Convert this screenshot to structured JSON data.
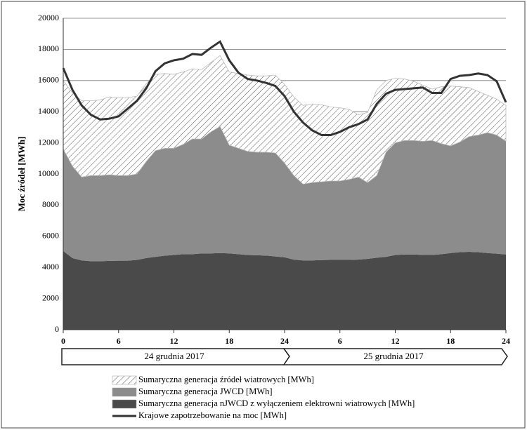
{
  "chart_data": {
    "type": "stacked-area-line",
    "y_label": "Moc źródeł [MWh]",
    "x": [
      0,
      1,
      2,
      3,
      4,
      5,
      6,
      7,
      8,
      9,
      10,
      11,
      12,
      13,
      14,
      15,
      16,
      17,
      18,
      19,
      20,
      21,
      22,
      23,
      24,
      25,
      26,
      27,
      28,
      29,
      30,
      31,
      32,
      33,
      34,
      35,
      36,
      37,
      38,
      39,
      40,
      41,
      42,
      43,
      44,
      45,
      46,
      47,
      48
    ],
    "xlim": [
      0,
      48
    ],
    "xticks": [
      0,
      6,
      12,
      18,
      24,
      {
        "value": 30,
        "label": "6"
      },
      {
        "value": 36,
        "label": "12"
      },
      {
        "value": 42,
        "label": "18"
      },
      {
        "value": 48,
        "label": "24"
      }
    ],
    "ylim": [
      0,
      20000
    ],
    "yticks": [
      0,
      2000,
      4000,
      6000,
      8000,
      10000,
      12000,
      14000,
      16000,
      18000,
      20000
    ],
    "grid": true,
    "date_bands": [
      "24 grudnia 2017",
      "25 grudnia 2017"
    ],
    "series": [
      {
        "name": "Sumaryczna generacja źródeł wiatrowych [MWh]",
        "kind": "area",
        "color": "#555555",
        "pattern": "hatch",
        "values": [
          4400,
          4700,
          4900,
          4800,
          4850,
          5000,
          5000,
          5000,
          5000,
          5000,
          4900,
          4800,
          4750,
          4650,
          4500,
          4450,
          4450,
          4550,
          4700,
          4800,
          4900,
          4900,
          4900,
          5000,
          5050,
          5050,
          5050,
          5050,
          4950,
          4750,
          4700,
          4500,
          4000,
          4500,
          5500,
          4600,
          4150,
          3950,
          3800,
          3600,
          3300,
          3650,
          3850,
          3550,
          3150,
          2800,
          2400,
          2300,
          2300
        ]
      },
      {
        "name": "Sumaryczna generacja JWCD [MWh]",
        "kind": "area",
        "color": "#8c8c8c",
        "values": [
          6550,
          5900,
          5350,
          5500,
          5500,
          5530,
          5470,
          5470,
          5520,
          6200,
          6820,
          6900,
          6850,
          7050,
          7400,
          7350,
          7800,
          8130,
          6950,
          6800,
          6650,
          6620,
          6640,
          6650,
          6050,
          5400,
          4900,
          5000,
          5030,
          5070,
          5070,
          5170,
          5300,
          4900,
          5280,
          6720,
          7200,
          7320,
          7320,
          7300,
          7350,
          7100,
          6880,
          7070,
          7400,
          7520,
          7730,
          7620,
          7270
        ]
      },
      {
        "name": "Sumaryczna generacja nJWCD z wyłączeniem elektrowni wiatrowych [MWh]",
        "kind": "area",
        "color": "#4a4a4a",
        "values": [
          5050,
          4600,
          4450,
          4400,
          4400,
          4420,
          4430,
          4430,
          4480,
          4600,
          4680,
          4750,
          4800,
          4850,
          4850,
          4900,
          4900,
          4920,
          4900,
          4850,
          4800,
          4780,
          4760,
          4700,
          4650,
          4500,
          4450,
          4450,
          4470,
          4480,
          4480,
          4480,
          4500,
          4550,
          4620,
          4680,
          4800,
          4830,
          4830,
          4800,
          4800,
          4850,
          4920,
          4980,
          5000,
          4980,
          4920,
          4880,
          4830
        ]
      },
      {
        "name": "Krajowe zapotrzebowanie na moc [MWh]",
        "kind": "line",
        "color": "#333333",
        "values": [
          16800,
          15400,
          14400,
          13800,
          13500,
          13550,
          13700,
          14200,
          14700,
          15500,
          16600,
          17100,
          17300,
          17400,
          17700,
          17650,
          18100,
          18500,
          17300,
          16500,
          16100,
          16000,
          15850,
          15650,
          15000,
          14000,
          13300,
          12800,
          12500,
          12500,
          12700,
          13000,
          13200,
          13500,
          14500,
          15150,
          15400,
          15450,
          15500,
          15550,
          15200,
          15200,
          16100,
          16300,
          16350,
          16450,
          16350,
          15950,
          14600
        ]
      }
    ]
  }
}
